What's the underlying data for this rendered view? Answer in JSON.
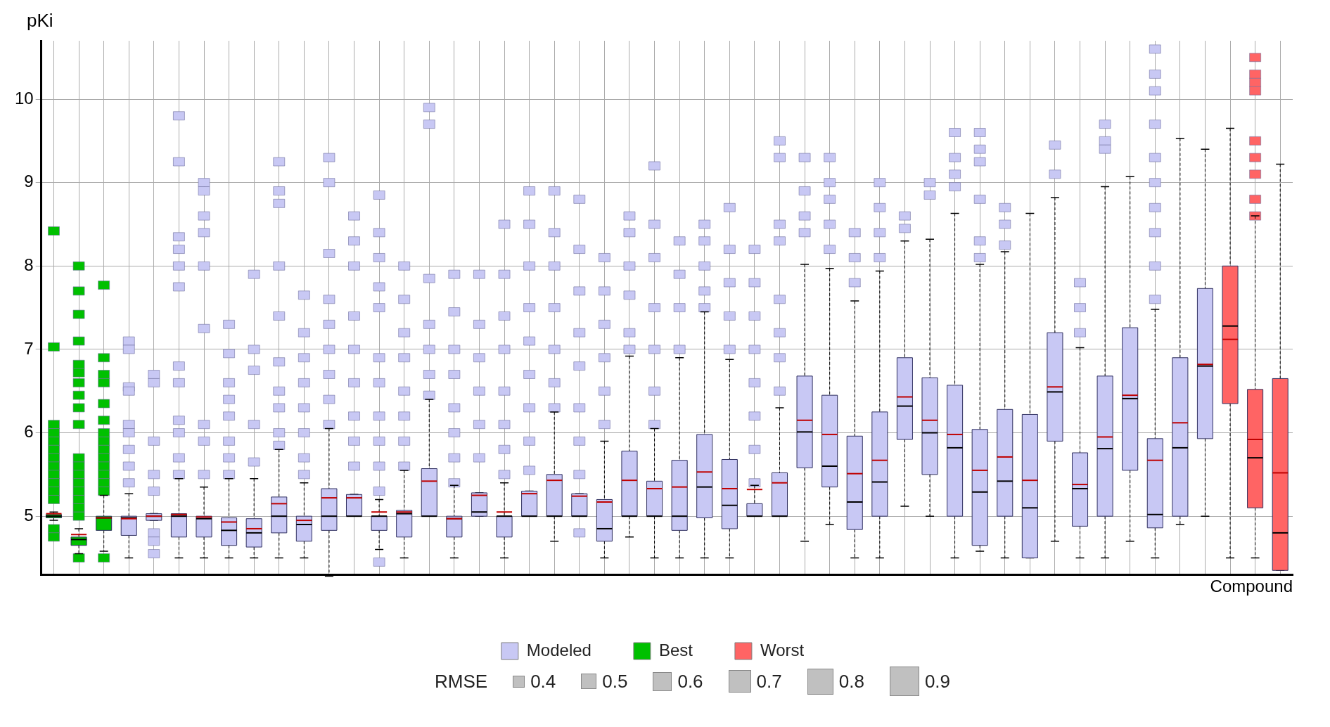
{
  "chart_data": {
    "type": "box",
    "xlabel": "Compound",
    "ylabel": "pKi",
    "ylim": [
      4.3,
      10.7
    ],
    "yticks": [
      5,
      6,
      7,
      8,
      9,
      10
    ],
    "grid": true,
    "legend": "bottom",
    "annotations": [
      "RMSE",
      "0.4",
      "0.5",
      "0.6",
      "0.7",
      "0.8",
      "0.9"
    ],
    "categories": [
      null,
      null,
      null,
      null,
      null,
      null,
      null,
      null,
      null,
      null,
      null,
      null,
      null,
      null,
      null,
      null,
      null,
      null,
      null,
      null,
      null,
      null,
      null,
      null,
      null,
      null,
      null,
      null,
      null,
      null,
      null,
      null,
      null,
      null,
      null,
      null,
      null,
      null,
      null,
      null,
      null,
      null,
      null,
      null,
      null,
      null,
      null,
      null,
      null,
      null
    ],
    "series": [
      {
        "name": "Modeled",
        "color": "#c8c8f4",
        "boxes": [
          null,
          null,
          null,
          {
            "low": 4.5,
            "q1": 4.77,
            "median": 4.98,
            "q3": 5.0,
            "high": 5.27,
            "mean": 4.97,
            "outliers": [
              7.1,
              7.0,
              6.55,
              6.5,
              6.1,
              6.0,
              5.8,
              5.6,
              5.4
            ]
          },
          {
            "low": 4.95,
            "q1": 4.95,
            "median": 5.0,
            "q3": 5.03,
            "high": 5.03,
            "mean": 5.0,
            "outliers": [
              6.7,
              6.6,
              5.9,
              5.5,
              5.3,
              4.8,
              4.7,
              4.55
            ]
          },
          {
            "low": 4.5,
            "q1": 4.75,
            "median": 5.0,
            "q3": 5.03,
            "high": 5.45,
            "mean": 5.02,
            "outliers": [
              9.8,
              9.25,
              8.35,
              8.2,
              8.0,
              7.75,
              6.8,
              6.6,
              6.15,
              6.0,
              5.7,
              5.5
            ]
          },
          {
            "low": 4.5,
            "q1": 4.75,
            "median": 4.97,
            "q3": 5.0,
            "high": 5.35,
            "mean": 4.99,
            "outliers": [
              9.0,
              8.9,
              8.6,
              8.4,
              8.0,
              7.25,
              6.1,
              5.9,
              5.5
            ]
          },
          {
            "low": 4.5,
            "q1": 4.65,
            "median": 4.83,
            "q3": 4.98,
            "high": 5.45,
            "mean": 4.93,
            "outliers": [
              7.3,
              6.95,
              6.6,
              6.4,
              6.2,
              5.9,
              5.7,
              5.5
            ]
          },
          {
            "low": 4.5,
            "q1": 4.63,
            "median": 4.8,
            "q3": 4.97,
            "high": 5.45,
            "mean": 4.85,
            "outliers": [
              7.9,
              7.0,
              6.75,
              6.1,
              5.65
            ]
          },
          {
            "low": 4.5,
            "q1": 4.8,
            "median": 5.0,
            "q3": 5.23,
            "high": 5.8,
            "mean": 5.15,
            "outliers": [
              9.25,
              8.9,
              8.75,
              8.0,
              7.4,
              6.85,
              6.5,
              6.3,
              6.0,
              5.85
            ]
          },
          {
            "low": 4.5,
            "q1": 4.7,
            "median": 4.9,
            "q3": 5.0,
            "high": 5.4,
            "mean": 4.95,
            "outliers": [
              7.65,
              7.2,
              6.9,
              6.6,
              6.3,
              6.0,
              5.7,
              5.5
            ]
          },
          {
            "low": 4.28,
            "q1": 4.83,
            "median": 5.0,
            "q3": 5.33,
            "high": 6.05,
            "mean": 5.22,
            "outliers": [
              9.3,
              9.0,
              8.15,
              7.6,
              7.3,
              7.0,
              6.7,
              6.4,
              6.1
            ]
          },
          {
            "low": 5.0,
            "q1": 5.0,
            "median": 5.0,
            "q3": 5.26,
            "high": 5.26,
            "mean": 5.22,
            "outliers": [
              8.6,
              8.3,
              8.0,
              7.4,
              7.0,
              6.6,
              6.2,
              5.9,
              5.6
            ]
          },
          {
            "low": 4.6,
            "q1": 4.83,
            "median": 5.0,
            "q3": 5.0,
            "high": 5.2,
            "mean": 5.05,
            "outliers": [
              8.85,
              8.4,
              8.1,
              7.75,
              7.5,
              6.9,
              6.6,
              6.2,
              5.9,
              5.6,
              5.3,
              4.45
            ]
          },
          {
            "low": 4.5,
            "q1": 4.75,
            "median": 5.03,
            "q3": 5.07,
            "high": 5.55,
            "mean": 5.05,
            "outliers": [
              8.0,
              7.6,
              7.2,
              6.9,
              6.5,
              6.2,
              5.9,
              5.6
            ]
          },
          {
            "low": 5.0,
            "q1": 5.0,
            "median": 5.0,
            "q3": 5.57,
            "high": 6.4,
            "mean": 5.42,
            "outliers": [
              9.9,
              9.7,
              7.85,
              7.3,
              7.0,
              6.7,
              6.45
            ]
          },
          {
            "low": 4.5,
            "q1": 4.75,
            "median": 4.97,
            "q3": 5.0,
            "high": 5.37,
            "mean": 4.97,
            "outliers": [
              7.9,
              7.45,
              7.0,
              6.7,
              6.3,
              6.0,
              5.7,
              5.4
            ]
          },
          {
            "low": 5.0,
            "q1": 5.0,
            "median": 5.05,
            "q3": 5.28,
            "high": 5.28,
            "mean": 5.25,
            "outliers": [
              7.9,
              7.3,
              6.9,
              6.5,
              6.1,
              5.7
            ]
          },
          {
            "low": 4.5,
            "q1": 4.75,
            "median": 5.0,
            "q3": 5.0,
            "high": 5.4,
            "mean": 5.05,
            "outliers": [
              8.5,
              7.9,
              7.4,
              7.0,
              6.5,
              6.1,
              5.8,
              5.5
            ]
          },
          {
            "low": 5.0,
            "q1": 5.0,
            "median": 5.0,
            "q3": 5.3,
            "high": 5.3,
            "mean": 5.27,
            "outliers": [
              8.9,
              8.5,
              8.0,
              7.5,
              7.1,
              6.7,
              6.3,
              5.9,
              5.55
            ]
          },
          {
            "low": 4.7,
            "q1": 5.0,
            "median": 5.0,
            "q3": 5.5,
            "high": 6.25,
            "mean": 5.43,
            "outliers": [
              8.9,
              8.4,
              8.0,
              7.5,
              7.0,
              6.6,
              6.3
            ]
          },
          {
            "low": 5.0,
            "q1": 5.0,
            "median": 5.0,
            "q3": 5.27,
            "high": 5.27,
            "mean": 5.24,
            "outliers": [
              8.8,
              8.2,
              7.7,
              7.2,
              6.8,
              6.3,
              5.9,
              5.5,
              4.8
            ]
          },
          {
            "low": 4.5,
            "q1": 4.7,
            "median": 4.85,
            "q3": 5.2,
            "high": 5.9,
            "mean": 5.17,
            "outliers": [
              8.1,
              7.7,
              7.3,
              6.9,
              6.5,
              6.1
            ]
          },
          {
            "low": 4.75,
            "q1": 5.0,
            "median": 5.0,
            "q3": 5.78,
            "high": 6.92,
            "mean": 5.43,
            "outliers": [
              8.6,
              8.4,
              8.0,
              7.65,
              7.2,
              7.0
            ]
          },
          {
            "low": 4.5,
            "q1": 5.0,
            "median": 5.0,
            "q3": 5.42,
            "high": 6.05,
            "mean": 5.33,
            "outliers": [
              9.2,
              8.5,
              8.1,
              7.5,
              7.0,
              6.5,
              6.1
            ]
          },
          {
            "low": 4.5,
            "q1": 4.83,
            "median": 5.0,
            "q3": 5.67,
            "high": 6.9,
            "mean": 5.35,
            "outliers": [
              8.3,
              7.9,
              7.5,
              7.0
            ]
          },
          {
            "low": 4.5,
            "q1": 4.98,
            "median": 5.35,
            "q3": 5.98,
            "high": 7.45,
            "mean": 5.53,
            "outliers": [
              8.5,
              8.3,
              8.0,
              7.7,
              7.5
            ]
          },
          {
            "low": 4.5,
            "q1": 4.85,
            "median": 5.13,
            "q3": 5.68,
            "high": 6.88,
            "mean": 5.33,
            "outliers": [
              8.7,
              8.2,
              7.8,
              7.4,
              7.0
            ]
          },
          {
            "low": 5.0,
            "q1": 5.0,
            "median": 5.0,
            "q3": 5.15,
            "high": 5.37,
            "mean": 5.32,
            "outliers": [
              8.2,
              7.8,
              7.4,
              7.0,
              6.6,
              6.2,
              5.8,
              5.4
            ]
          },
          {
            "low": 5.0,
            "q1": 5.0,
            "median": 5.0,
            "q3": 5.52,
            "high": 6.3,
            "mean": 5.4,
            "outliers": [
              9.5,
              9.3,
              8.5,
              8.3,
              7.6,
              7.2,
              6.9,
              6.5
            ]
          },
          {
            "low": 4.7,
            "q1": 5.58,
            "median": 6.01,
            "q3": 6.68,
            "high": 8.02,
            "mean": 6.15,
            "outliers": [
              9.3,
              8.9,
              8.6,
              8.4
            ]
          },
          {
            "low": 4.9,
            "q1": 5.35,
            "median": 5.6,
            "q3": 6.45,
            "high": 7.97,
            "mean": 5.98,
            "outliers": [
              9.3,
              9.0,
              8.8,
              8.5,
              8.2
            ]
          },
          {
            "low": 4.5,
            "q1": 4.84,
            "median": 5.17,
            "q3": 5.96,
            "high": 7.58,
            "mean": 5.51,
            "outliers": [
              8.4,
              8.1,
              7.8
            ]
          },
          {
            "low": 4.5,
            "q1": 5.0,
            "median": 5.41,
            "q3": 6.25,
            "high": 7.94,
            "mean": 5.67,
            "outliers": [
              9.0,
              8.7,
              8.4,
              8.1
            ]
          },
          {
            "low": 5.12,
            "q1": 5.92,
            "median": 6.32,
            "q3": 6.9,
            "high": 8.3,
            "mean": 6.43,
            "outliers": [
              8.6,
              8.45
            ]
          },
          {
            "low": 5.0,
            "q1": 5.5,
            "median": 6.0,
            "q3": 6.66,
            "high": 8.32,
            "mean": 6.15,
            "outliers": [
              9.0,
              8.85
            ]
          },
          {
            "low": 4.5,
            "q1": 5.0,
            "median": 5.82,
            "q3": 6.57,
            "high": 8.63,
            "mean": 5.98,
            "outliers": [
              9.6,
              9.3,
              9.1,
              8.95
            ]
          },
          {
            "low": 4.58,
            "q1": 4.65,
            "median": 5.29,
            "q3": 6.04,
            "high": 8.02,
            "mean": 5.55,
            "outliers": [
              9.6,
              9.4,
              9.25,
              8.8,
              8.3,
              8.1
            ]
          },
          {
            "low": 4.5,
            "q1": 5.0,
            "median": 5.42,
            "q3": 6.28,
            "high": 8.17,
            "mean": 5.71,
            "outliers": [
              8.7,
              8.5,
              8.25
            ]
          },
          {
            "low": 4.5,
            "q1": 4.5,
            "median": 5.1,
            "q3": 6.22,
            "high": 8.63,
            "mean": 5.43
          },
          {
            "low": 4.7,
            "q1": 5.9,
            "median": 6.49,
            "q3": 7.2,
            "high": 8.82,
            "mean": 6.55,
            "outliers": [
              9.45,
              9.1
            ]
          },
          {
            "low": 4.5,
            "q1": 4.88,
            "median": 5.33,
            "q3": 5.76,
            "high": 7.02,
            "mean": 5.38,
            "outliers": [
              7.8,
              7.5,
              7.2
            ]
          },
          {
            "low": 4.5,
            "q1": 5.0,
            "median": 5.81,
            "q3": 6.68,
            "high": 8.95,
            "mean": 5.95,
            "outliers": [
              9.7,
              9.5,
              9.4
            ]
          },
          {
            "low": 4.7,
            "q1": 5.55,
            "median": 6.41,
            "q3": 7.26,
            "high": 9.07,
            "mean": 6.45
          },
          {
            "low": 4.5,
            "q1": 4.86,
            "median": 5.02,
            "q3": 5.93,
            "high": 7.48,
            "mean": 5.67,
            "outliers": [
              10.6,
              10.3,
              10.1,
              9.7,
              9.3,
              9.0,
              8.7,
              8.4,
              8.0,
              7.6
            ]
          },
          {
            "low": 4.9,
            "q1": 5.0,
            "median": 5.82,
            "q3": 6.9,
            "high": 9.53,
            "mean": 6.12
          },
          {
            "low": 5.0,
            "q1": 5.93,
            "median": 6.8,
            "q3": 7.73,
            "high": 9.4,
            "mean": 6.82
          },
          null,
          null,
          null
        ]
      },
      {
        "name": "Best",
        "color": "#00c000",
        "boxes": [
          {
            "low": 4.95,
            "q1": 4.98,
            "median": 5.0,
            "q3": 5.02,
            "high": 5.05,
            "mean": 5.03,
            "outliers": [
              8.42,
              7.03,
              6.1,
              6.0,
              5.9,
              5.8,
              5.7,
              5.6,
              5.5,
              5.4,
              5.3,
              5.2,
              4.85,
              4.75
            ]
          },
          {
            "low": 4.55,
            "q1": 4.65,
            "median": 4.72,
            "q3": 4.75,
            "high": 4.85,
            "mean": 4.78,
            "outliers": [
              8.0,
              7.7,
              7.42,
              7.1,
              6.82,
              6.72,
              6.6,
              6.45,
              6.3,
              6.1,
              5.7,
              5.6,
              5.5,
              5.4,
              5.3,
              5.2,
              5.1,
              5.0,
              4.5
            ]
          },
          {
            "low": 4.58,
            "q1": 4.83,
            "median": 4.98,
            "q3": 5.0,
            "high": 5.25,
            "mean": 4.98,
            "outliers": [
              7.77,
              6.9,
              6.7,
              6.6,
              6.35,
              6.15,
              6.0,
              5.9,
              5.8,
              5.7,
              5.6,
              5.5,
              5.4,
              5.3,
              4.5
            ]
          },
          null,
          null,
          null,
          null,
          null,
          null,
          null,
          null,
          null,
          null,
          null,
          null,
          null,
          null,
          null,
          null,
          null,
          null,
          null,
          null,
          null,
          null,
          null,
          null,
          null,
          null,
          null,
          null,
          null,
          null,
          null,
          null,
          null,
          null,
          null,
          null,
          null,
          null,
          null,
          null,
          null,
          null,
          null,
          null,
          null,
          null,
          null
        ]
      },
      {
        "name": "Worst",
        "color": "#ff6464",
        "boxes": [
          null,
          null,
          null,
          null,
          null,
          null,
          null,
          null,
          null,
          null,
          null,
          null,
          null,
          null,
          null,
          null,
          null,
          null,
          null,
          null,
          null,
          null,
          null,
          null,
          null,
          null,
          null,
          null,
          null,
          null,
          null,
          null,
          null,
          null,
          null,
          null,
          null,
          null,
          null,
          null,
          null,
          null,
          null,
          null,
          null,
          null,
          null,
          {
            "low": 4.5,
            "q1": 6.35,
            "median": 7.28,
            "q3": 8.0,
            "high": 9.65,
            "mean": 7.12
          },
          {
            "low": 4.5,
            "q1": 5.1,
            "median": 5.7,
            "q3": 6.52,
            "high": 8.6,
            "mean": 5.92,
            "outliers": [
              10.5,
              10.3,
              10.2,
              10.1,
              9.5,
              9.3,
              9.1,
              8.8,
              8.6
            ]
          },
          {
            "low": 4.35,
            "q1": 4.35,
            "median": 4.8,
            "q3": 6.65,
            "high": 9.22,
            "mean": 5.52
          }
        ]
      }
    ]
  }
}
